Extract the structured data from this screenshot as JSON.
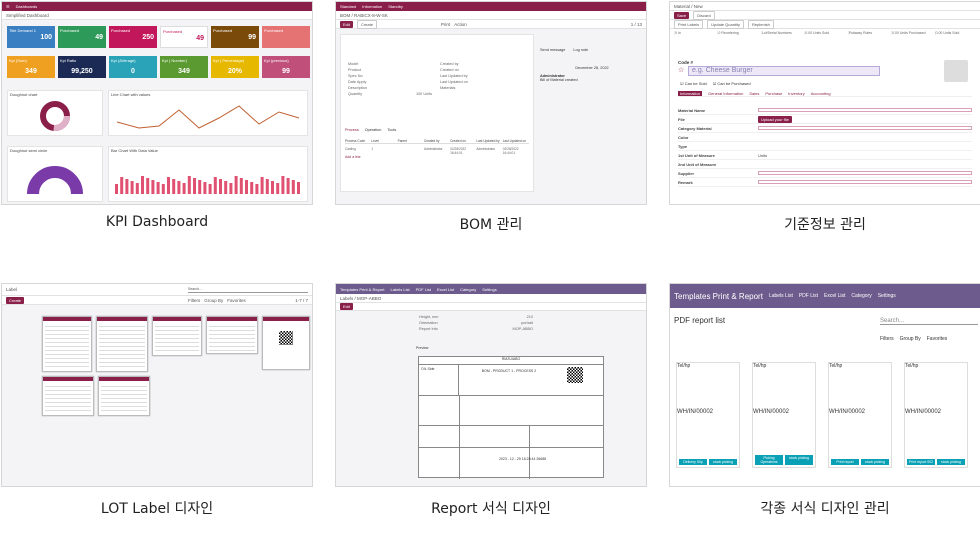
{
  "captions": [
    "KPI Dashboard",
    "BOM 관리",
    "기준정보 관리",
    "LOT Label 디자인",
    "Report 서식 디자인",
    "각종 서식 디자인 관리"
  ],
  "kpi": {
    "breadcrumb": "Simplified Dashboard",
    "tiles_top": [
      {
        "label": "Title Demand 1",
        "value": "100",
        "color": "#3a7fc1"
      },
      {
        "label": "Purchased",
        "value": "49",
        "color": "#2e9a5a"
      },
      {
        "label": "Purchased",
        "value": "250",
        "color": "#c2185b"
      },
      {
        "label": "Purchased",
        "value": "49",
        "color": "#ffffff"
      },
      {
        "label": "Purchased",
        "value": "99",
        "color": "#7a4a0a"
      },
      {
        "label": "Purchased",
        "value": "",
        "color": "#e57373"
      }
    ],
    "tiles_bottom": [
      {
        "label": "Kpi (Sum)",
        "value": "349",
        "color": "#f0a020"
      },
      {
        "label": "Kpi Ratio",
        "value": "99,250",
        "color": "#1a2a55"
      },
      {
        "label": "Kpi (AVerage)",
        "value": "0",
        "color": "#2aa3b8"
      },
      {
        "label": "Kpi ( Number)",
        "value": "349",
        "color": "#5a9a30"
      },
      {
        "label": "Kpi ( Percentage)",
        "value": "20%",
        "color": "#e6b800"
      },
      {
        "label": "Kpi (previous)",
        "value": "99",
        "color": "#c0507a"
      }
    ],
    "charts": [
      "Doughnut chart",
      "Line Chart with values",
      "Doughnut semi circle",
      "Bar Chart With Data Value"
    ]
  },
  "bom": {
    "app": "Standard",
    "tabs": [
      "Information",
      "Standby"
    ],
    "title": "BOM / RABICX-8-W-SK",
    "edit": "Edit",
    "create": "Create",
    "print": "Print",
    "action": "Action",
    "pager": "1 / 13",
    "fields_left": [
      "Model",
      "Product",
      "Spec No",
      "Date Apply",
      "Description",
      "Quantity"
    ],
    "fields_right": [
      "Created by",
      "Created on",
      "Last Updated by",
      "Last Updated on",
      "Materials"
    ],
    "quantity": "100 Units",
    "process_tabs": [
      "Process",
      "Operation",
      "Tools"
    ],
    "table_headers": [
      "Process Code",
      "Level",
      "Parent",
      "Created by",
      "Created on",
      "Last Updated by",
      "Last Updated on"
    ],
    "table_row": [
      "Casting",
      "1",
      "",
      "Administrator",
      "02/28/2022 16:44:01",
      "Administrator",
      "02/28/2022 16:44:01"
    ],
    "add_line": "Add a line",
    "chatter": {
      "send": "Send message",
      "log": "Log note",
      "date": "December 28, 2022",
      "author": "Administrator",
      "msg": "Bill of Material created"
    }
  },
  "master": {
    "breadcrumb": "Material / New",
    "save": "Save",
    "discard": "Discard",
    "actions": [
      "Print Labels",
      "Update Quantity",
      "Replenish"
    ],
    "stats": [
      "0 In",
      "0 Reordering",
      "Lot/Serial Numbers",
      "0.00 Units Sold",
      "Putaway Rules",
      "0.00 Units Purchased",
      "0.00 Units Sold"
    ],
    "code_label": "Code #",
    "name_placeholder": "e.g. Cheese Burger",
    "can_sold": "Can be Sold",
    "can_purchased": "Can be Purchased",
    "tabs": [
      "Information",
      "General Information",
      "Sales",
      "Purchase",
      "Inventory",
      "Accounting"
    ],
    "fields": [
      "Material Name",
      "File",
      "Category Material",
      "Color",
      "Type",
      "1st Unit of Measure",
      "2nd Unit of Measure",
      "Supplier",
      "Remark"
    ],
    "upload": "Upload your file",
    "unit": "Units"
  },
  "lot": {
    "title": "Label",
    "create": "Create",
    "search": "Search...",
    "filters": [
      "Filters",
      "Group By",
      "Favorites"
    ],
    "pager": "1-7 / 7"
  },
  "report": {
    "app": "Templates Print & Report",
    "menu": [
      "Labels List",
      "PDF List",
      "Excel List",
      "Category",
      "Settings"
    ],
    "breadcrumb": "Labels / MOP-ABBO",
    "edit": "Edit",
    "fields": [
      "Height, mm",
      "Orientation",
      "Report Info"
    ],
    "values": [
      "210",
      "portrait",
      "MOP-ABBO"
    ],
    "preview": "Preview",
    "doc_title": "RMZUIABO",
    "doc_row1": "BOM - PRODUCT 1 - PROCESS 2",
    "doc_side": "OIL Side",
    "doc_foot": "2023 - 12 - 25 16:28:44 26688"
  },
  "pdf": {
    "app": "Templates Print & Report",
    "menu": [
      "Labels List",
      "PDF List",
      "Excel List",
      "Category",
      "Settings"
    ],
    "title": "PDF report list",
    "search": "Search...",
    "filters": [
      "Filters",
      "Group By",
      "Favorites"
    ],
    "cards": [
      {
        "btns": [
          "Delivery Slip",
          "stock picking"
        ]
      },
      {
        "btns": [
          "Picking Operations",
          "stock picking"
        ]
      },
      {
        "btns": [
          "Print report",
          "stock picking"
        ]
      },
      {
        "btns": [
          "Print report 002",
          "stock picking"
        ]
      }
    ],
    "card_title": "Tel/hp",
    "card_big": "WH/IN/00002"
  }
}
